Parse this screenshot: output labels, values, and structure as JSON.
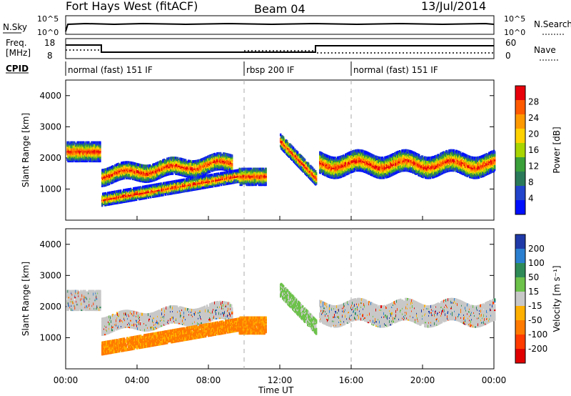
{
  "header": {
    "station": "Fort Hays West (fitACF)",
    "beam": "Beam 04",
    "date": "13/Jul/2014"
  },
  "strip": {
    "nsky_label": "N.Sky",
    "nsky_ticks": [
      "10^5",
      "10^0"
    ],
    "nsearch_label": "N.Search",
    "nsearch_ticks": [
      "10^5",
      "10^0"
    ],
    "freq_label_line1": "Freq.",
    "freq_label_line2": "[MHz]",
    "freq_ticks": [
      "18",
      "8"
    ],
    "nave_label": "Nave",
    "nave_ticks": [
      "60",
      "0"
    ],
    "cpid_label": "CPID"
  },
  "cpid_segments": [
    {
      "label": "normal (fast) 151 IF",
      "start_hr": 0,
      "end_hr": 10
    },
    {
      "label": "rbsp 200 IF",
      "start_hr": 10,
      "end_hr": 16
    },
    {
      "label": "normal (fast) 151 IF",
      "start_hr": 16,
      "end_hr": 24
    }
  ],
  "chart_data": [
    {
      "type": "heatmap",
      "xlabel": "Time UT",
      "ylabel": "Slant Range [km]",
      "x_ticks": [
        "00:00",
        "04:00",
        "08:00",
        "12:00",
        "16:00",
        "20:00",
        "00:00"
      ],
      "xlim_hours": [
        0,
        24
      ],
      "ylim": [
        0,
        4500
      ],
      "y_ticks": [
        "4000",
        "3000",
        "2000",
        "1000"
      ],
      "colorbar": {
        "label": "Power [dB]",
        "ticks": [
          "28",
          "24",
          "20",
          "16",
          "12",
          "8",
          "4"
        ],
        "colors": [
          "#e8000b",
          "#ff5a00",
          "#ff9900",
          "#ffd200",
          "#a8d400",
          "#3aa03a",
          "#2a7a5a",
          "#2244cc",
          "#0010ff"
        ]
      }
    },
    {
      "type": "heatmap",
      "xlabel": "Time UT",
      "ylabel": "Slant Range [km]",
      "x_ticks": [
        "00:00",
        "04:00",
        "08:00",
        "12:00",
        "16:00",
        "20:00",
        "00:00"
      ],
      "xlim_hours": [
        0,
        24
      ],
      "ylim": [
        0,
        4500
      ],
      "y_ticks": [
        "4000",
        "3000",
        "2000",
        "1000"
      ],
      "colorbar": {
        "label": "Velocity [m s⁻¹]",
        "ticks": [
          "200",
          "100",
          "50",
          "15",
          "-15",
          "-50",
          "-100",
          "-200"
        ],
        "colors": [
          "#1f3aa8",
          "#2b7fd0",
          "#2e8b57",
          "#6cc24a",
          "#c8c8c8",
          "#ffb000",
          "#ff7a00",
          "#ff3b00",
          "#e00000"
        ]
      }
    }
  ]
}
